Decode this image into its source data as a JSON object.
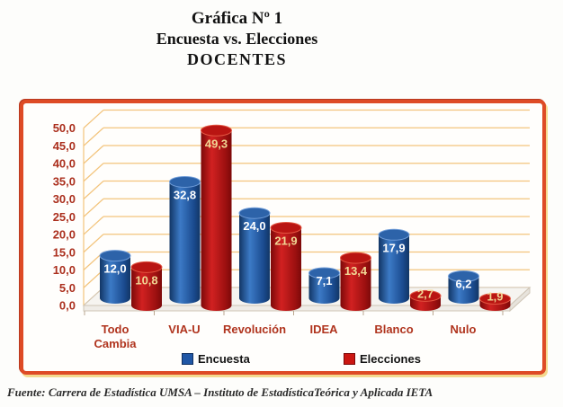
{
  "title": {
    "line1": "Gráfica Nº 1",
    "line2": "Encuesta vs. Elecciones",
    "line3": "DOCENTES"
  },
  "footer": "Fuente: Carrera de Estadística UMSA – Instituto de EstadísticaTeórica y Aplicada IETA",
  "legend": [
    {
      "label": "Encuesta",
      "color": "#2057a6",
      "border": "#0f2f60"
    },
    {
      "label": "Elecciones",
      "color": "#cb1712",
      "border": "#7c0808"
    }
  ],
  "chart_data": {
    "type": "bar",
    "subtype": "3d-cylinder",
    "title": "Gráfica Nº 1 - Encuesta vs. Elecciones - DOCENTES",
    "categories": [
      "Todo Cambia",
      "VIA-U",
      "Revolución",
      "IDEA",
      "Blanco",
      "Nulo"
    ],
    "series": [
      {
        "name": "Encuesta",
        "color": "#2057a6",
        "values": [
          12.0,
          32.8,
          24.0,
          7.1,
          17.9,
          6.2
        ]
      },
      {
        "name": "Elecciones",
        "color": "#cb1712",
        "values": [
          10.8,
          49.3,
          21.9,
          13.4,
          2.7,
          1.9
        ]
      }
    ],
    "xlabel": "",
    "ylabel": "",
    "ylim": [
      0,
      50
    ],
    "ytick_step": 5,
    "ytick_labels": [
      "0,0",
      "5,0",
      "10,0",
      "15,0",
      "20,0",
      "25,0",
      "30,0",
      "35,0",
      "40,0",
      "45,0",
      "50,0"
    ],
    "decimal_separator": ",",
    "grid": true,
    "legend_position": "bottom"
  },
  "colors": {
    "frame": "#de4b26",
    "grid": "#f3c47c",
    "axis_label": "#ab2f1d",
    "category_label": "#b0341e",
    "floor_fill": "#f6f4f0",
    "floor_front": "#efece7",
    "floor_side": "#e7e3dc",
    "floor_edge": "#cfc5b6",
    "tick": "#b9a78f",
    "blue": {
      "dark": "#123665",
      "mid": "#3c7ac6",
      "base": "#1a4a8e",
      "top": "#2d63a9",
      "rim": "#6f9cd8",
      "label": "#ffffff"
    },
    "red": {
      "dark": "#7c0909",
      "mid": "#d12121",
      "base": "#9d1010",
      "top": "#b91512",
      "rim": "#e25541",
      "label": "#f1d795"
    }
  }
}
